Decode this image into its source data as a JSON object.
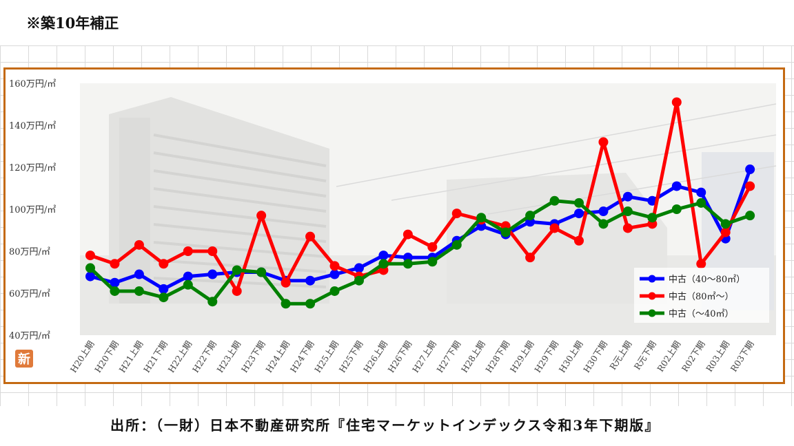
{
  "header": {
    "note": "※築10年補正"
  },
  "source": {
    "text": "出所：（一財）日本不動産研究所『住宅マーケットインデックス令和3年下期版』"
  },
  "badge": {
    "text": "新"
  },
  "colors": {
    "frame": "#c46a12",
    "series1": "#0000ff",
    "series2": "#ff0000",
    "series3": "#008000"
  },
  "chart_data": {
    "type": "line",
    "title": "",
    "xlabel": "",
    "ylabel": "",
    "ylim": [
      40,
      160
    ],
    "yticks": [
      "40万円/㎡",
      "60万円/㎡",
      "80万円/㎡",
      "100万円/㎡",
      "120万円/㎡",
      "140万円/㎡",
      "160万円/㎡"
    ],
    "categories": [
      "H20上期",
      "H20下期",
      "H21上期",
      "H21下期",
      "H22上期",
      "H22下期",
      "H23上期",
      "H23下期",
      "H24上期",
      "H24下期",
      "H25上期",
      "H25下期",
      "H26上期",
      "H26下期",
      "H27上期",
      "H27下期",
      "H28上期",
      "H28下期",
      "H29上期",
      "H29下期",
      "H30上期",
      "H30下期",
      "R元上期",
      "R元下期",
      "R02上期",
      "R02下期",
      "R03上期",
      "R03下期"
    ],
    "legend_position": "bottom-right",
    "grid": false,
    "series": [
      {
        "name": "中古（40～80㎡）",
        "color": "#0000ff",
        "values": [
          68,
          65,
          69,
          62,
          68,
          69,
          70,
          70,
          66,
          66,
          69,
          72,
          78,
          77,
          77,
          85,
          92,
          88,
          94,
          93,
          98,
          99,
          106,
          104,
          111,
          108,
          86,
          119
        ]
      },
      {
        "name": "中古（80㎡～）",
        "color": "#ff0000",
        "values": [
          78,
          74,
          83,
          74,
          80,
          80,
          61,
          97,
          65,
          87,
          73,
          68,
          71,
          88,
          82,
          98,
          95,
          92,
          77,
          91,
          85,
          132,
          91,
          93,
          151,
          74,
          89,
          111
        ]
      },
      {
        "name": "中古（～40㎡）",
        "color": "#008000",
        "values": [
          72,
          61,
          61,
          58,
          64,
          56,
          71,
          70,
          55,
          55,
          61,
          66,
          74,
          74,
          75,
          83,
          96,
          89,
          97,
          104,
          103,
          93,
          99,
          96,
          100,
          103,
          93,
          97
        ]
      }
    ]
  }
}
